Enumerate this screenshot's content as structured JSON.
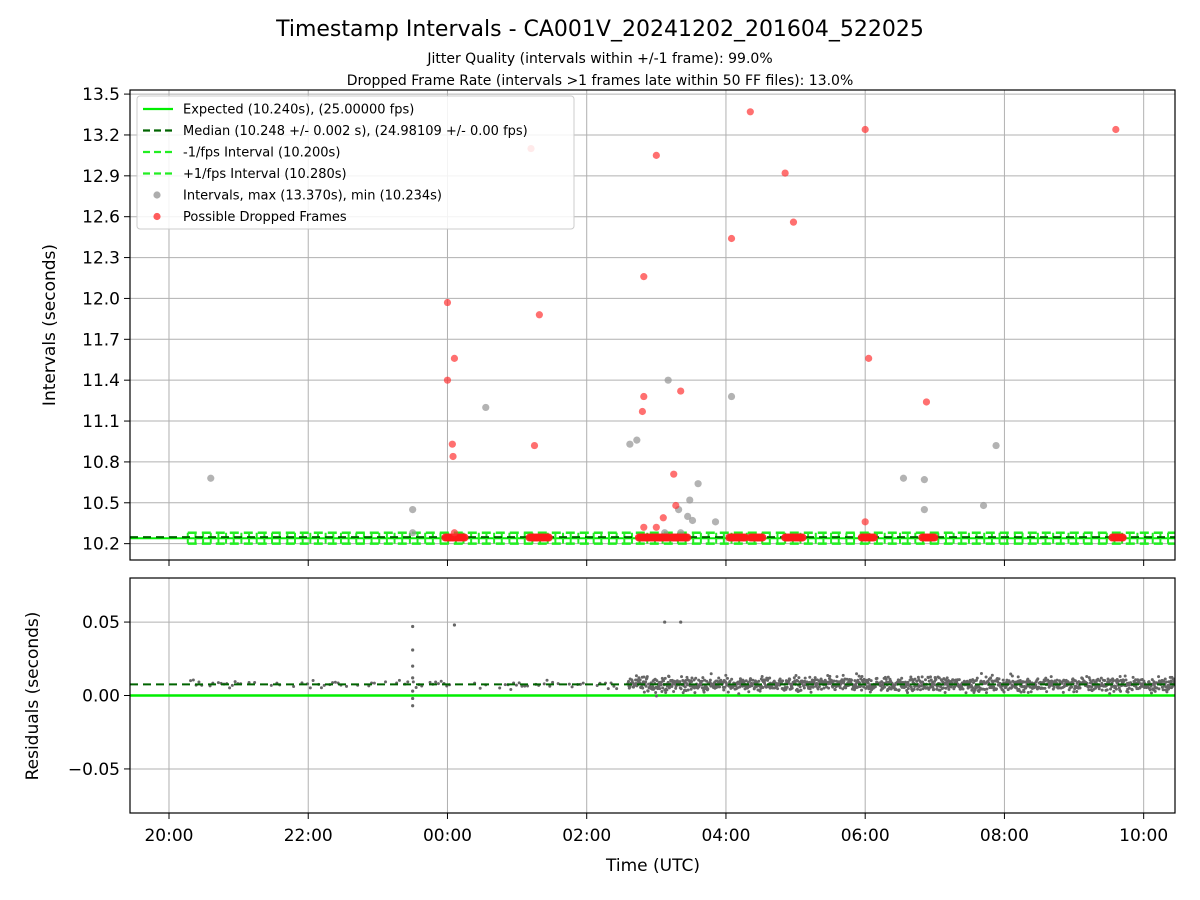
{
  "title": "Timestamp Intervals - CA001V_20241202_201604_522025",
  "subtitle_lines": [
    "Jitter Quality (intervals within +/-1 frame): 99.0%",
    "Dropped Frame Rate (intervals >1 frames late within 50 FF files): 13.0%"
  ],
  "colors": {
    "expected": "#00ee00",
    "median": "#006400",
    "bounds": "#22ee22",
    "intervals": "#999999",
    "dropped": "#ff3333",
    "residuals": "#666666",
    "grid": "#b0b0b0"
  },
  "chart_data": [
    {
      "type": "scatter",
      "ylabel": "Intervals (seconds)",
      "xlabel": "",
      "ylim": [
        10.08,
        13.53
      ],
      "yticks": [
        10.2,
        10.5,
        10.8,
        11.1,
        11.4,
        11.7,
        12.0,
        12.3,
        12.6,
        12.9,
        13.2,
        13.5
      ],
      "yticklabels": [
        "10.2",
        "10.5",
        "10.8",
        "11.1",
        "11.4",
        "11.7",
        "12.0",
        "12.3",
        "12.6",
        "12.9",
        "13.2",
        "13.5"
      ],
      "grid": true,
      "legend_position": "top-left",
      "legend": [
        {
          "label": "Expected (10.240s), (25.00000 fps)",
          "style": "solid-line",
          "color": "#00ee00"
        },
        {
          "label": "Median (10.248 +/- 0.002 s), (24.98109 +/- 0.00 fps)",
          "style": "dashed-line",
          "color": "#006400"
        },
        {
          "label": "-1/fps Interval (10.200s)",
          "style": "dashed-line",
          "color": "#22ee22"
        },
        {
          "label": "+1/fps Interval (10.280s)",
          "style": "dashed-line",
          "color": "#22ee22"
        },
        {
          "label": "Intervals, max (13.370s), min (10.234s)",
          "style": "marker",
          "color": "#999999"
        },
        {
          "label": "Possible Dropped Frames",
          "style": "marker",
          "color": "#ff3333"
        }
      ],
      "hlines": {
        "expected": 10.24,
        "median": 10.248,
        "lower": 10.2,
        "upper": 10.28
      },
      "x_range_hours": [
        -4.56,
        10.45
      ],
      "data_span_hours": [
        -3.73,
        10.45
      ],
      "series": [
        {
          "name": "Intervals, max (13.370s), min (10.234s)",
          "points": [
            [
              -3.4,
              10.68
            ],
            [
              -0.5,
              10.45
            ],
            [
              -0.5,
              10.28
            ],
            [
              0.55,
              11.2
            ],
            [
              2.62,
              10.93
            ],
            [
              2.72,
              10.96
            ],
            [
              3.17,
              11.4
            ],
            [
              3.12,
              10.28
            ],
            [
              3.32,
              10.45
            ],
            [
              3.35,
              10.28
            ],
            [
              3.45,
              10.4
            ],
            [
              3.48,
              10.52
            ],
            [
              3.52,
              10.37
            ],
            [
              3.6,
              10.64
            ],
            [
              3.85,
              10.36
            ],
            [
              4.08,
              11.28
            ],
            [
              6.55,
              10.68
            ],
            [
              6.85,
              10.67
            ],
            [
              6.85,
              10.45
            ],
            [
              7.7,
              10.48
            ],
            [
              7.88,
              10.92
            ]
          ]
        },
        {
          "name": "Possible Dropped Frames",
          "points": [
            [
              1.2,
              13.1
            ],
            [
              4.35,
              13.37
            ],
            [
              6.0,
              13.24
            ],
            [
              9.6,
              13.24
            ],
            [
              3.0,
              13.05
            ],
            [
              4.85,
              12.92
            ],
            [
              4.97,
              12.56
            ],
            [
              4.08,
              12.44
            ],
            [
              2.82,
              12.16
            ],
            [
              0.0,
              11.97
            ],
            [
              1.32,
              11.88
            ],
            [
              0.1,
              11.56
            ],
            [
              6.05,
              11.56
            ],
            [
              0.0,
              11.4
            ],
            [
              3.35,
              11.32
            ],
            [
              2.82,
              11.28
            ],
            [
              6.88,
              11.24
            ],
            [
              2.8,
              11.17
            ],
            [
              0.07,
              10.93
            ],
            [
              1.25,
              10.92
            ],
            [
              0.08,
              10.84
            ],
            [
              3.25,
              10.71
            ],
            [
              3.28,
              10.48
            ],
            [
              3.1,
              10.39
            ],
            [
              6.0,
              10.36
            ],
            [
              2.82,
              10.32
            ],
            [
              3.0,
              10.32
            ],
            [
              0.1,
              10.28
            ]
          ],
          "clusters": [
            [
              -0.03,
              0.25
            ],
            [
              1.18,
              1.47
            ],
            [
              2.75,
              3.18
            ],
            [
              3.22,
              3.45
            ],
            [
              4.05,
              4.3
            ],
            [
              4.35,
              4.55
            ],
            [
              4.85,
              5.12
            ],
            [
              5.95,
              6.15
            ],
            [
              6.82,
              7.0
            ],
            [
              9.55,
              9.72
            ]
          ],
          "cluster_value": 10.245
        }
      ]
    },
    {
      "type": "scatter",
      "ylabel": "Residuals (seconds)",
      "xlabel": "Time (UTC)",
      "ylim": [
        -0.08,
        0.08
      ],
      "yticks": [
        -0.05,
        0.0,
        0.05
      ],
      "yticklabels": [
        "−0.05",
        "0.00",
        "0.05"
      ],
      "xticks_hours": [
        -4,
        -2,
        0,
        2,
        4,
        6,
        8,
        10
      ],
      "xticklabels": [
        "20:00",
        "22:00",
        "00:00",
        "02:00",
        "04:00",
        "06:00",
        "08:00",
        "10:00"
      ],
      "x_range_hours": [
        -4.56,
        10.45
      ],
      "grid": true,
      "hlines": {
        "zero": 0.0,
        "median": 0.0076
      },
      "residual_baseline": 0.0076,
      "residual_spread": 0.0025,
      "dense_span_hours": [
        2.6,
        10.45
      ],
      "sparse_span_hours": [
        -3.73,
        2.6
      ],
      "outliers": [
        [
          -0.5,
          0.047
        ],
        [
          -0.5,
          0.031
        ],
        [
          -0.5,
          0.02
        ],
        [
          -0.5,
          0.012
        ],
        [
          -0.5,
          0.003
        ],
        [
          -0.5,
          -0.002
        ],
        [
          -0.5,
          -0.007
        ],
        [
          0.1,
          0.048
        ],
        [
          3.12,
          0.05
        ],
        [
          3.35,
          0.05
        ]
      ]
    }
  ]
}
